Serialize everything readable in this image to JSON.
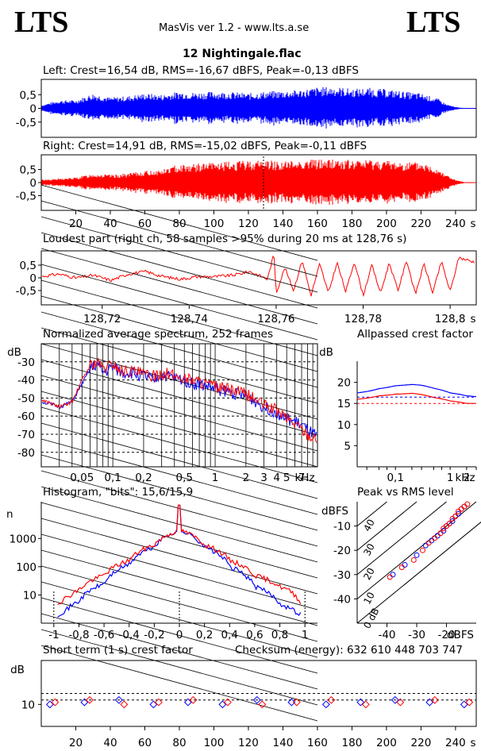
{
  "header": {
    "logo_left": "LTS",
    "logo_right": "LTS",
    "app_title": "MasVis ver 1.2 - www.lts.a.se",
    "file_name": "12 Nightingale.flac"
  },
  "waveform_left": {
    "title": "Left: Crest=16,54 dB, RMS=-16,67 dBFS, Peak=-0,13 dBFS",
    "y_ticks": [
      "0,5",
      "0",
      "-0,5"
    ],
    "color": "#0000ff"
  },
  "waveform_right": {
    "title": "Right: Crest=14,91 dB, RMS=-15,02 dBFS, Peak=-0,11 dBFS",
    "y_ticks": [
      "0,5",
      "0",
      "-0,5"
    ],
    "color": "#ff0000",
    "x_ticks": [
      "20",
      "40",
      "60",
      "80",
      "100",
      "120",
      "140",
      "160",
      "180",
      "200",
      "220",
      "240"
    ],
    "x_unit": "s",
    "marker_time_s": 128.76
  },
  "loudest": {
    "title": "Loudest part (right ch, 58 samples >95% during 20 ms at 128,76 s)",
    "y_ticks": [
      "0,5",
      "0",
      "-0,5"
    ],
    "x_ticks": [
      "128,72",
      "128,74",
      "128,76",
      "128,78",
      "128,8"
    ],
    "x_unit": "s"
  },
  "spectrum": {
    "title": "Normalized average spectrum, 252 frames",
    "y_unit": "dB",
    "y_ticks": [
      "-30",
      "-40",
      "-50",
      "-60",
      "-70",
      "-80"
    ],
    "x_ticks": [
      "0,05",
      "0,1",
      "0,2",
      "0,5",
      "1",
      "2",
      "3",
      "4",
      "5",
      "7"
    ],
    "x_unit": "kHz"
  },
  "allpass": {
    "title": "Allpassed crest factor",
    "y_unit": "dB",
    "y_ticks": [
      "20",
      "15",
      "10",
      "5"
    ],
    "x_ticks": [
      "0,1",
      "1",
      "2"
    ],
    "x_unit": "kHz"
  },
  "histogram": {
    "title": "Histogram, \"bits\": 15,6/15,9",
    "y_unit": "n",
    "y_ticks": [
      "1000",
      "100",
      "10"
    ],
    "x_ticks": [
      "-1",
      "-0,8",
      "-0,6",
      "-0,4",
      "-0,2",
      "0",
      "0,2",
      "0,4",
      "0,6",
      "0,8",
      "1"
    ]
  },
  "peak_rms": {
    "title": "Peak vs RMS level",
    "y_unit": "dBFS",
    "y_ticks": [
      "-10",
      "-20",
      "-30",
      "-40"
    ],
    "x_ticks": [
      "-40",
      "-30",
      "-20"
    ],
    "x_unit": "dBFS",
    "diag_labels": [
      "40",
      "30",
      "20",
      "10",
      "0 dB"
    ]
  },
  "crest_short": {
    "title": "Short term (1 s) crest factor",
    "checksum": "Checksum (energy):   632 610 448 703 747",
    "y_unit": "dB",
    "y_ticks": [
      "10"
    ],
    "x_ticks": [
      "20",
      "40",
      "60",
      "80",
      "100",
      "120",
      "140",
      "160",
      "180",
      "200",
      "220",
      "240"
    ],
    "x_unit": "s"
  },
  "chart_data": [
    {
      "type": "line",
      "title": "Left: Crest=16,54 dB, RMS=-16,67 dBFS, Peak=-0,13 dBFS",
      "ylim": [
        -1,
        1
      ],
      "xlim": [
        0,
        252
      ],
      "series": [
        {
          "color": "#0000ff",
          "x": [
            0,
            10,
            20,
            30,
            40,
            50,
            60,
            70,
            80,
            90,
            100,
            110,
            120,
            130,
            140,
            150,
            160,
            170,
            180,
            190,
            200,
            210,
            220,
            230,
            235,
            240,
            245,
            252
          ],
          "values": [
            0.12,
            0.3,
            0.3,
            0.55,
            0.4,
            0.45,
            0.55,
            0.5,
            0.62,
            0.58,
            0.62,
            0.6,
            0.55,
            0.62,
            0.65,
            0.68,
            0.78,
            0.8,
            0.72,
            0.75,
            0.7,
            0.62,
            0.55,
            0.35,
            0.15,
            0.05,
            0.01,
            0.0
          ]
        }
      ]
    },
    {
      "type": "line",
      "title": "Right: Crest=14,91 dB, RMS=-15,02 dBFS, Peak=-0,11 dBFS",
      "ylim": [
        -1,
        1
      ],
      "xlim": [
        0,
        252
      ],
      "series": [
        {
          "color": "#ff0000",
          "x": [
            0,
            10,
            20,
            30,
            40,
            50,
            60,
            70,
            80,
            90,
            100,
            110,
            120,
            130,
            140,
            150,
            160,
            170,
            180,
            190,
            200,
            210,
            220,
            230,
            235,
            240,
            245,
            252
          ],
          "values": [
            0.12,
            0.15,
            0.2,
            0.35,
            0.3,
            0.35,
            0.45,
            0.5,
            0.72,
            0.72,
            0.78,
            0.8,
            0.85,
            0.88,
            0.82,
            0.88,
            0.9,
            0.92,
            0.85,
            0.9,
            0.85,
            0.8,
            0.78,
            0.55,
            0.3,
            0.1,
            0.02,
            0.0
          ]
        }
      ]
    },
    {
      "type": "line",
      "title": "Loudest part (right ch, 58 samples >95% during 20 ms at 128,76 s)",
      "ylim": [
        -1,
        1
      ],
      "xlim": [
        128.706,
        128.806
      ],
      "series": [
        {
          "color": "#ff0000",
          "x": [
            128.706,
            128.71,
            128.714,
            128.718,
            128.722,
            128.726,
            128.73,
            128.734,
            128.738,
            128.742,
            128.746,
            128.75,
            128.754,
            128.758,
            128.7595,
            128.76,
            128.762,
            128.764,
            128.766,
            128.768,
            128.77,
            128.772,
            128.774,
            128.776,
            128.778,
            128.78,
            128.782,
            128.784,
            128.786,
            128.788,
            128.79,
            128.792,
            128.794,
            128.796,
            128.798,
            128.8,
            128.802,
            128.806
          ],
          "values": [
            0.05,
            0.15,
            0.0,
            0.1,
            -0.1,
            0.15,
            0.25,
            0.05,
            -0.05,
            0.05,
            0.05,
            0.1,
            0.25,
            -0.05,
            0.95,
            -0.6,
            0.4,
            -0.5,
            0.7,
            -0.7,
            0.55,
            -0.6,
            0.6,
            -0.55,
            0.65,
            -0.7,
            0.5,
            -0.6,
            0.6,
            -0.5,
            0.7,
            -0.65,
            0.55,
            -0.6,
            0.65,
            -0.55,
            0.8,
            0.6
          ]
        }
      ]
    },
    {
      "type": "line",
      "title": "Normalized average spectrum, 252 frames",
      "ylim": [
        -90,
        -20
      ],
      "xlim_khz": [
        0.02,
        10
      ],
      "series": [
        {
          "color": "#0000ff",
          "x": [
            0.02,
            0.03,
            0.04,
            0.05,
            0.06,
            0.07,
            0.08,
            0.1,
            0.12,
            0.15,
            0.2,
            0.25,
            0.3,
            0.4,
            0.5,
            0.6,
            0.8,
            1,
            1.5,
            2,
            3,
            4,
            5,
            6,
            7,
            8,
            10
          ],
          "values": [
            -52,
            -55,
            -52,
            -42,
            -34,
            -31,
            -36,
            -33,
            -36,
            -36,
            -38,
            -40,
            -37,
            -39,
            -40,
            -42,
            -43,
            -45,
            -47,
            -49,
            -55,
            -58,
            -62,
            -63,
            -65,
            -68,
            -72
          ]
        },
        {
          "color": "#ff0000",
          "x": [
            0.02,
            0.03,
            0.04,
            0.05,
            0.06,
            0.07,
            0.08,
            0.1,
            0.12,
            0.15,
            0.2,
            0.25,
            0.3,
            0.4,
            0.5,
            0.6,
            0.8,
            1,
            1.5,
            2,
            3,
            4,
            5,
            6,
            7,
            8,
            10
          ],
          "values": [
            -51,
            -55,
            -52,
            -40,
            -32,
            -30,
            -34,
            -31,
            -35,
            -35,
            -37,
            -38,
            -36,
            -38,
            -39,
            -40,
            -42,
            -44,
            -46,
            -48,
            -54,
            -57,
            -61,
            -64,
            -67,
            -70,
            -73
          ]
        }
      ]
    },
    {
      "type": "line",
      "title": "Allpassed crest factor",
      "ylim": [
        0,
        25
      ],
      "xlim_khz": [
        0.02,
        3
      ],
      "series": [
        {
          "color": "#0000ff",
          "x": [
            0.02,
            0.05,
            0.1,
            0.2,
            0.3,
            0.5,
            1,
            2,
            3
          ],
          "values": [
            17.5,
            18.5,
            19.2,
            19.5,
            19.3,
            18.6,
            17.5,
            16.8,
            16.6
          ]
        },
        {
          "color": "#ff0000",
          "x": [
            0.02,
            0.05,
            0.1,
            0.2,
            0.3,
            0.5,
            1,
            2,
            3
          ],
          "values": [
            16,
            16.8,
            17.2,
            17.4,
            17.1,
            16.4,
            15.6,
            15,
            15
          ]
        }
      ],
      "reference_lines": [
        {
          "color": "#ff0000",
          "value": 15
        },
        {
          "color": "#0000ff",
          "value": 16.5
        }
      ]
    },
    {
      "type": "line",
      "title": "Histogram, \"bits\": 15,6/15,9",
      "y_scale": "log",
      "ylim": [
        1,
        20000
      ],
      "xlim": [
        -1.1,
        1.1
      ],
      "series": [
        {
          "color": "#0000ff",
          "x": [
            -0.97,
            -0.9,
            -0.8,
            -0.6,
            -0.4,
            -0.2,
            0,
            0.2,
            0.4,
            0.6,
            0.8,
            0.9,
            0.97
          ],
          "values": [
            2,
            3,
            6,
            25,
            120,
            500,
            2000,
            500,
            100,
            20,
            5,
            3,
            2
          ]
        },
        {
          "color": "#ff0000",
          "x": [
            -0.97,
            -0.9,
            -0.8,
            -0.6,
            -0.4,
            -0.2,
            0,
            0.2,
            0.4,
            0.6,
            0.8,
            0.9,
            0.97
          ],
          "values": [
            5,
            8,
            15,
            50,
            170,
            600,
            2000,
            600,
            170,
            50,
            20,
            12,
            5
          ]
        }
      ]
    },
    {
      "type": "scatter",
      "title": "Peak vs RMS level",
      "xlim": [
        -50,
        -10
      ],
      "ylim": [
        -50,
        0
      ],
      "series": [
        {
          "color": "#0000ff",
          "x": [
            -38,
            -34,
            -30,
            -27,
            -25,
            -23,
            -21,
            -20,
            -19,
            -18,
            -17,
            -16,
            -15,
            -14
          ],
          "values": [
            -30,
            -26,
            -22,
            -18,
            -16,
            -14,
            -12,
            -10,
            -9,
            -8,
            -6,
            -5,
            -3,
            -2
          ]
        },
        {
          "color": "#ff0000",
          "x": [
            -39,
            -35,
            -31,
            -28,
            -26,
            -24,
            -22,
            -21,
            -20,
            -19,
            -18,
            -17,
            -16,
            -15,
            -14,
            -13
          ],
          "values": [
            -31,
            -27,
            -24,
            -20,
            -17,
            -15,
            -13,
            -11,
            -10,
            -9,
            -7,
            -6,
            -4,
            -3,
            -2,
            -1
          ]
        }
      ]
    },
    {
      "type": "scatter",
      "title": "Short term (1 s) crest factor",
      "xlim": [
        0,
        252
      ],
      "ylim": [
        0,
        30
      ],
      "series": [
        {
          "color": "#0000ff",
          "x": [
            5,
            25,
            45,
            65,
            85,
            105,
            125,
            145,
            165,
            185,
            205,
            225,
            245
          ],
          "values": [
            10,
            11,
            12,
            10,
            11,
            10,
            12,
            11,
            10,
            11,
            12,
            11,
            10
          ]
        },
        {
          "color": "#ff0000",
          "x": [
            8,
            28,
            48,
            68,
            88,
            108,
            128,
            148,
            168,
            188,
            208,
            228,
            248
          ],
          "values": [
            11,
            12,
            10,
            11,
            12,
            11,
            10,
            11,
            12,
            10,
            11,
            12,
            11
          ]
        }
      ],
      "reference_lines": [
        {
          "value": 15
        },
        {
          "value": 12
        }
      ]
    }
  ]
}
